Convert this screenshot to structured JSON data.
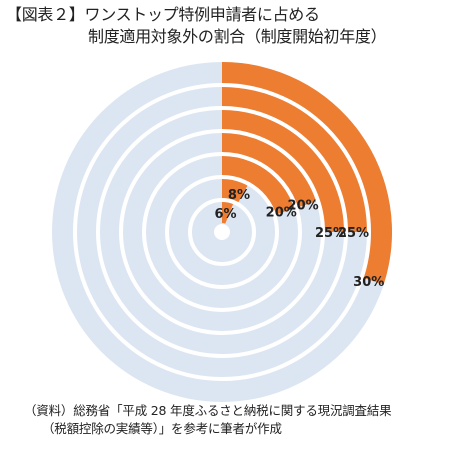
{
  "colors": {
    "highlight": "#ED7D31",
    "background_ring": "#DCE6F2",
    "ring_separator": "#FFFFFF"
  },
  "title": {
    "line1": "【図表２】ワンストップ特例申請者に占める",
    "line2": "制度適用対象外の割合（制度開始初年度）"
  },
  "source": {
    "line1": "（資料）総務省「平成 28 年度ふるさと納税に関する現況調査結果",
    "line2": "（税額控除の実績等）」を参考に筆者が作成"
  },
  "chart_data": {
    "type": "radial_bar",
    "unit": "%",
    "full_scale": 100,
    "values": [
      6,
      8,
      20,
      20,
      25,
      25,
      30
    ],
    "labels": [
      "6%",
      "8%",
      "20%",
      "20%",
      "25%",
      "25%",
      "30%"
    ],
    "legend": "none",
    "grid": false
  }
}
